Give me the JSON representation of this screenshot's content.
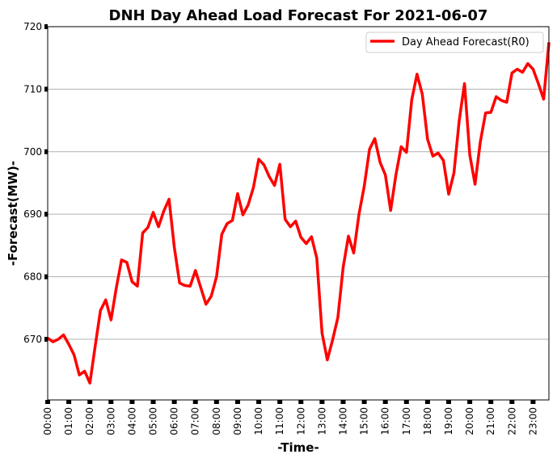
{
  "chart_data": {
    "type": "line",
    "title": "DNH Day Ahead Load Forecast For 2021-06-07",
    "xlabel": "-Time-",
    "ylabel": "-Forecast(MW)-",
    "ylim": [
      660.3,
      720
    ],
    "yticks": [
      670,
      680,
      690,
      700,
      710,
      720
    ],
    "grid": "horizontal",
    "legend_position": "top-right",
    "x_tick_labels": [
      "00:00",
      "01:00",
      "02:00",
      "03:00",
      "04:00",
      "05:00",
      "06:00",
      "07:00",
      "08:00",
      "09:00",
      "10:00",
      "11:00",
      "12:00",
      "13:00",
      "14:00",
      "15:00",
      "16:00",
      "17:00",
      "18:00",
      "19:00",
      "20:00",
      "21:00",
      "22:00",
      "23:00"
    ],
    "interval_minutes": 15,
    "series": [
      {
        "name": "Day Ahead Forecast(R0)",
        "color": "#ff0000",
        "values": [
          670.2,
          669.6,
          670.0,
          670.7,
          669.2,
          667.5,
          664.3,
          664.9,
          663.0,
          668.9,
          674.6,
          676.3,
          673.1,
          678.2,
          682.7,
          682.3,
          679.2,
          678.5,
          687.0,
          687.9,
          690.3,
          688.0,
          690.5,
          692.4,
          684.7,
          679.0,
          678.6,
          678.5,
          681.0,
          678.3,
          675.6,
          676.9,
          680.0,
          686.8,
          688.5,
          689.0,
          693.3,
          689.9,
          691.5,
          694.3,
          698.8,
          697.9,
          696.0,
          694.6,
          698.0,
          689.2,
          688.0,
          688.9,
          686.3,
          685.3,
          686.4,
          683.0,
          671.0,
          666.7,
          669.9,
          673.5,
          681.5,
          686.5,
          683.8,
          690.0,
          694.5,
          700.4,
          702.1,
          698.3,
          696.3,
          690.6,
          696.3,
          700.8,
          699.9,
          708.3,
          712.4,
          709.2,
          702.0,
          699.3,
          699.8,
          698.6,
          693.2,
          696.6,
          705.0,
          710.9,
          699.5,
          694.8,
          701.6,
          706.2,
          706.3,
          708.8,
          708.2,
          707.9,
          712.6,
          713.2,
          712.7,
          714.1,
          713.2,
          710.9,
          708.4,
          717.5
        ]
      }
    ]
  }
}
